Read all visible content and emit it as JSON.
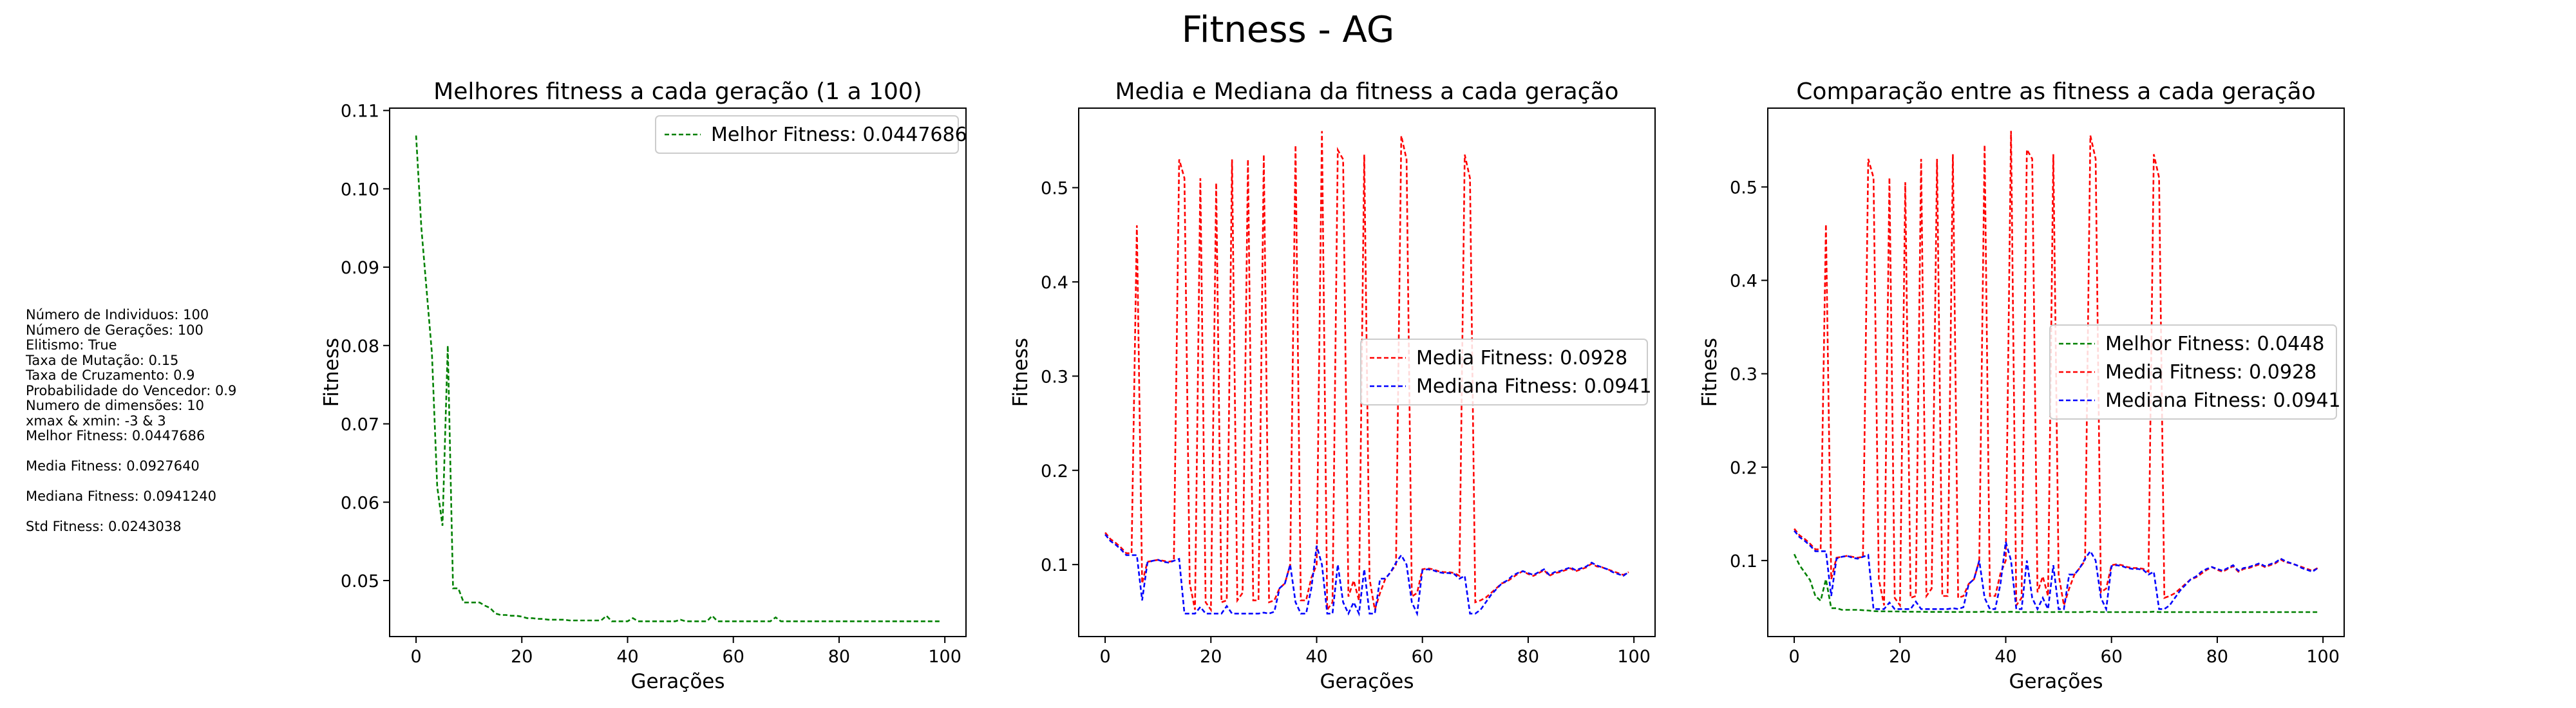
{
  "figure": {
    "title": "Fitness - AG"
  },
  "info_panel": {
    "lines": [
      "Número de Individuos: 100",
      "Número de Gerações: 100",
      "Elitismo: True",
      "Taxa de Mutação: 0.15",
      "Taxa de Cruzamento: 0.9",
      "Probabilidade do Vencedor: 0.9",
      "Numero de dimensões: 10",
      "xmax & xmin: -3 & 3",
      "Melhor Fitness: 0.0447686",
      "",
      "Media Fitness: 0.0927640",
      "",
      "Mediana Fitness: 0.0941240",
      "",
      "Std Fitness: 0.0243038"
    ]
  },
  "series_base": {
    "melhor": [
      0.1068,
      0.095,
      0.087,
      0.079,
      0.062,
      0.057,
      0.08,
      0.049,
      0.049,
      0.0472,
      0.0472,
      0.0472,
      0.0472,
      0.0468,
      0.0465,
      0.0458,
      0.0456,
      0.0456,
      0.0455,
      0.0455,
      0.0454,
      0.0452,
      0.0452,
      0.0451,
      0.0451,
      0.045,
      0.045,
      0.045,
      0.045,
      0.0449,
      0.0449,
      0.0449,
      0.0449,
      0.0449,
      0.0449,
      0.0449,
      0.0455,
      0.0448,
      0.0448,
      0.0448,
      0.0448,
      0.0452,
      0.0448,
      0.0448,
      0.0448,
      0.0448,
      0.0448,
      0.0448,
      0.0448,
      0.0448,
      0.045,
      0.0448,
      0.0448,
      0.0448,
      0.0448,
      0.0448,
      0.0455,
      0.0448,
      0.0448,
      0.0448,
      0.0448,
      0.0448,
      0.0448,
      0.0448,
      0.0448,
      0.0448,
      0.0448,
      0.0448,
      0.0453,
      0.0448,
      0.0448,
      0.0448,
      0.0448,
      0.0448,
      0.0448,
      0.0448,
      0.0448,
      0.0448,
      0.0448,
      0.0448,
      0.0448,
      0.0448,
      0.0448,
      0.0448,
      0.0448,
      0.0448,
      0.0448,
      0.0448,
      0.0448,
      0.0448,
      0.0448,
      0.0448,
      0.0448,
      0.0448,
      0.0448,
      0.0448,
      0.0448,
      0.0448,
      0.0448,
      0.0448
    ],
    "media": [
      0.134,
      0.127,
      0.123,
      0.118,
      0.112,
      0.112,
      0.46,
      0.08,
      0.103,
      0.104,
      0.105,
      0.104,
      0.103,
      0.104,
      0.53,
      0.51,
      0.08,
      0.052,
      0.51,
      0.06,
      0.052,
      0.505,
      0.06,
      0.062,
      0.53,
      0.062,
      0.07,
      0.53,
      0.062,
      0.062,
      0.535,
      0.06,
      0.062,
      0.075,
      0.08,
      0.1,
      0.545,
      0.062,
      0.062,
      0.086,
      0.1,
      0.56,
      0.052,
      0.06,
      0.54,
      0.53,
      0.066,
      0.083,
      0.062,
      0.535,
      0.085,
      0.052,
      0.07,
      0.085,
      0.092,
      0.1,
      0.555,
      0.53,
      0.066,
      0.07,
      0.095,
      0.096,
      0.095,
      0.093,
      0.092,
      0.092,
      0.091,
      0.088,
      0.535,
      0.51,
      0.06,
      0.062,
      0.065,
      0.07,
      0.075,
      0.08,
      0.082,
      0.086,
      0.09,
      0.093,
      0.09,
      0.088,
      0.091,
      0.094,
      0.088,
      0.091,
      0.092,
      0.094,
      0.096,
      0.093,
      0.095,
      0.097,
      0.101,
      0.098,
      0.097,
      0.095,
      0.093,
      0.091,
      0.089,
      0.092
    ],
    "mediana": [
      0.132,
      0.125,
      0.121,
      0.116,
      0.11,
      0.11,
      0.11,
      0.062,
      0.102,
      0.104,
      0.105,
      0.103,
      0.102,
      0.104,
      0.106,
      0.048,
      0.048,
      0.048,
      0.055,
      0.048,
      0.048,
      0.048,
      0.048,
      0.056,
      0.048,
      0.048,
      0.048,
      0.048,
      0.048,
      0.048,
      0.049,
      0.048,
      0.05,
      0.075,
      0.08,
      0.1,
      0.06,
      0.048,
      0.048,
      0.075,
      0.12,
      0.1,
      0.048,
      0.048,
      0.1,
      0.06,
      0.048,
      0.06,
      0.048,
      0.095,
      0.048,
      0.048,
      0.085,
      0.085,
      0.092,
      0.102,
      0.11,
      0.1,
      0.06,
      0.048,
      0.094,
      0.095,
      0.094,
      0.092,
      0.091,
      0.091,
      0.09,
      0.085,
      0.088,
      0.048,
      0.048,
      0.052,
      0.06,
      0.068,
      0.074,
      0.08,
      0.083,
      0.088,
      0.091,
      0.093,
      0.091,
      0.089,
      0.092,
      0.095,
      0.089,
      0.092,
      0.093,
      0.095,
      0.097,
      0.094,
      0.096,
      0.098,
      0.102,
      0.099,
      0.097,
      0.095,
      0.092,
      0.09,
      0.088,
      0.092
    ]
  },
  "chart_data": [
    {
      "type": "line",
      "title": "Melhores fitness a cada geração (1 a 100)",
      "xlabel": "Gerações",
      "ylabel": "Fitness",
      "xlim": [
        -5,
        104
      ],
      "ylim": [
        0.04285,
        0.1103
      ],
      "xticks": [
        0,
        20,
        40,
        60,
        80,
        100
      ],
      "yticks": [
        0.05,
        0.06,
        0.07,
        0.08,
        0.09,
        0.1,
        0.11
      ],
      "ytick_labels": [
        "0.05",
        "0.06",
        "0.07",
        "0.08",
        "0.09",
        "0.10",
        "0.11"
      ],
      "legend_loc": "upper right",
      "series": [
        {
          "name": "Melhor Fitness: 0.0447686",
          "color": "#008000",
          "key": "melhor"
        }
      ]
    },
    {
      "type": "line",
      "title": "Media e Mediana da fitness a cada geração",
      "xlabel": "Gerações",
      "ylabel": "Fitness",
      "xlim": [
        -5,
        104
      ],
      "ylim": [
        0.0236,
        0.5844
      ],
      "xticks": [
        0,
        20,
        40,
        60,
        80,
        100
      ],
      "yticks": [
        0.1,
        0.2,
        0.3,
        0.4,
        0.5
      ],
      "ytick_labels": [
        "0.1",
        "0.2",
        "0.3",
        "0.4",
        "0.5"
      ],
      "legend_loc": "center right",
      "series": [
        {
          "name": "Media Fitness: 0.0928",
          "color": "#ff0000",
          "key": "media"
        },
        {
          "name": "Mediana Fitness: 0.0941",
          "color": "#0000ff",
          "key": "mediana"
        }
      ]
    },
    {
      "type": "line",
      "title": "Comparação entre as fitness a cada geração",
      "xlabel": "Gerações",
      "ylabel": "Fitness",
      "xlim": [
        -5,
        104
      ],
      "ylim": [
        0.0186,
        0.5844
      ],
      "xticks": [
        0,
        20,
        40,
        60,
        80,
        100
      ],
      "yticks": [
        0.1,
        0.2,
        0.3,
        0.4,
        0.5
      ],
      "ytick_labels": [
        "0.1",
        "0.2",
        "0.3",
        "0.4",
        "0.5"
      ],
      "legend_loc": "center right",
      "series": [
        {
          "name": "Melhor Fitness: 0.0448",
          "color": "#008000",
          "key": "melhor"
        },
        {
          "name": "Media Fitness: 0.0928",
          "color": "#ff0000",
          "key": "media"
        },
        {
          "name": "Mediana Fitness: 0.0941",
          "color": "#0000ff",
          "key": "mediana"
        }
      ]
    }
  ]
}
